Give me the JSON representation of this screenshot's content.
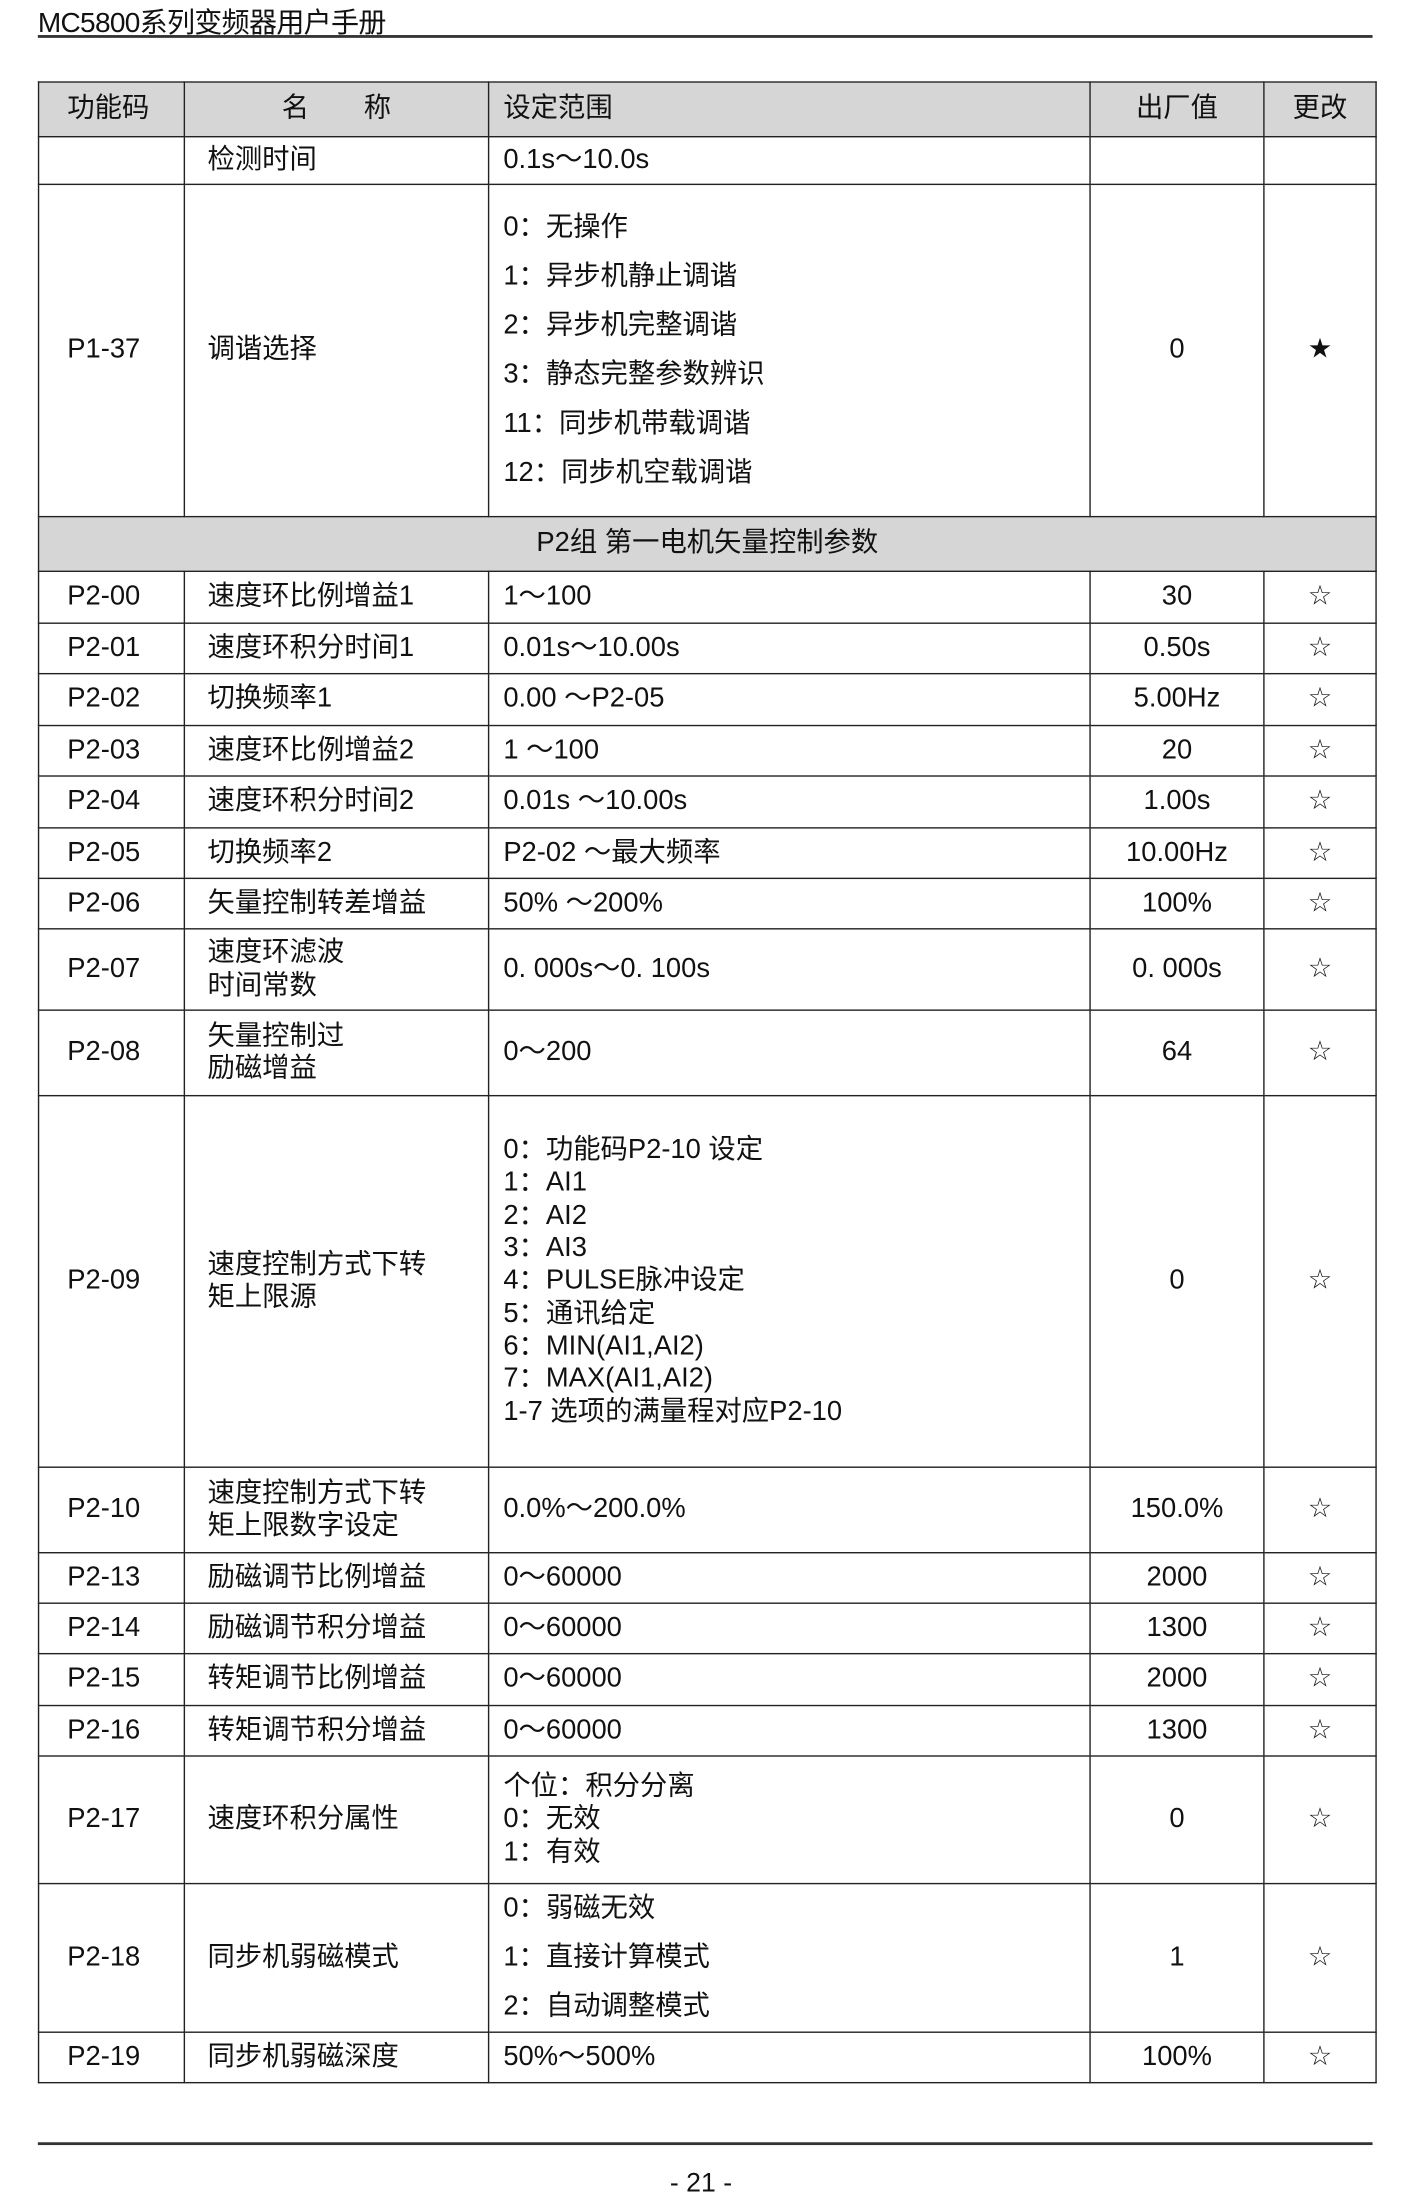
{
  "header": {
    "title": "MC5800系列变频器用户手册"
  },
  "footer": {
    "page": "- 21 -"
  },
  "columns": [
    "功能码",
    "名　　称",
    "设定范围",
    "出厂值",
    "更改"
  ],
  "rows": [
    {
      "code": "",
      "name": [
        "检测时间"
      ],
      "range": [
        "0.1s～10.0s"
      ],
      "default": "",
      "change": ""
    },
    {
      "code": "P1-37",
      "name": [
        "调谐选择"
      ],
      "range": [
        "0：无操作",
        "1：异步机静止调谐",
        "2：异步机完整调谐",
        "3：静态完整参数辨识",
        "11：同步机带载调谐",
        "12：同步机空载调谐"
      ],
      "default": "0",
      "change": "★",
      "spaced": true
    },
    {
      "group": "P2组 第一电机矢量控制参数"
    },
    {
      "code": "P2-00",
      "name": [
        "速度环比例增益1"
      ],
      "range": [
        "1～100"
      ],
      "default": "30",
      "change": "☆"
    },
    {
      "code": "P2-01",
      "name": [
        "速度环积分时间1"
      ],
      "range": [
        "0.01s～10.00s"
      ],
      "default": "0.50s",
      "change": "☆"
    },
    {
      "code": "P2-02",
      "name": [
        "切换频率1"
      ],
      "range": [
        "0.00 ～P2-05"
      ],
      "default": "5.00Hz",
      "change": "☆"
    },
    {
      "code": "P2-03",
      "name": [
        "速度环比例增益2"
      ],
      "range": [
        "1 ～100"
      ],
      "default": "20",
      "change": "☆"
    },
    {
      "code": "P2-04",
      "name": [
        "速度环积分时间2"
      ],
      "range": [
        "0.01s ～10.00s"
      ],
      "default": "1.00s",
      "change": "☆"
    },
    {
      "code": "P2-05",
      "name": [
        "切换频率2"
      ],
      "range": [
        "P2-02 ～最大频率"
      ],
      "default": "10.00Hz",
      "change": "☆"
    },
    {
      "code": "P2-06",
      "name": [
        "矢量控制转差增益"
      ],
      "range": [
        " 50% ～200%"
      ],
      "default": "100%",
      "change": "☆"
    },
    {
      "code": "P2-07",
      "name": [
        "速度环滤波",
        "时间常数"
      ],
      "range": [
        "0. 000s～0. 100s"
      ],
      "default": "0. 000s",
      "change": "☆"
    },
    {
      "code": "P2-08",
      "name": [
        "矢量控制过",
        "励磁增益"
      ],
      "range": [
        "0～200"
      ],
      "default": "64",
      "change": "☆"
    },
    {
      "code": "P2-09",
      "name": [
        "速度控制方式下转",
        "矩上限源"
      ],
      "range": [
        "0：功能码P2-10 设定",
        "1：AI1",
        "2：AI2",
        "3：AI3",
        "4：PULSE脉冲设定",
        "5：通讯给定",
        "6：MIN(AI1,AI2)",
        "7：MAX(AI1,AI2)",
        "1-7 选项的满量程对应P2-10"
      ],
      "default": "0",
      "change": "☆"
    },
    {
      "code": "P2-10",
      "name": [
        "速度控制方式下转",
        "矩上限数字设定"
      ],
      "range": [
        "0.0%～200.0%"
      ],
      "default": "150.0%",
      "change": "☆"
    },
    {
      "code": "P2-13",
      "name": [
        "励磁调节比例增益"
      ],
      "range": [
        "0～60000"
      ],
      "default": "2000",
      "change": "☆"
    },
    {
      "code": "P2-14",
      "name": [
        "励磁调节积分增益"
      ],
      "range": [
        "0～60000"
      ],
      "default": "1300",
      "change": "☆"
    },
    {
      "code": "P2-15",
      "name": [
        "转矩调节比例增益"
      ],
      "range": [
        "0～60000"
      ],
      "default": "2000",
      "change": "☆"
    },
    {
      "code": "P2-16",
      "name": [
        "转矩调节积分增益"
      ],
      "range": [
        "0～60000"
      ],
      "default": "1300",
      "change": "☆"
    },
    {
      "code": "P2-17",
      "name": [
        "速度环积分属性"
      ],
      "range": [
        "个位：积分分离",
        "0：无效",
        "1：有效"
      ],
      "default": "0",
      "change": "☆"
    },
    {
      "code": "P2-18",
      "name": [
        "同步机弱磁模式"
      ],
      "range": [
        "0：弱磁无效",
        "1：直接计算模式",
        "2：自动调整模式"
      ],
      "default": "1",
      "change": "☆",
      "spaced": true
    },
    {
      "code": "P2-19",
      "name": [
        "同步机弱磁深度"
      ],
      "range": [
        "50%～500%"
      ],
      "default": "100%",
      "change": "☆"
    }
  ]
}
